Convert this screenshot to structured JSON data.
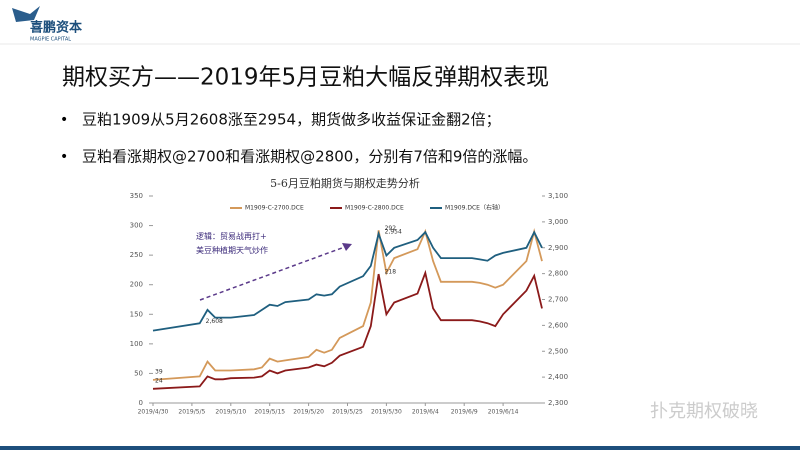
{
  "header": {
    "logo": "喜鹏资本",
    "logo_sub": "MAGPIE CAPITAL"
  },
  "title": "期权买方——2019年5月豆粕大幅反弹期权表现",
  "bullets": [
    "豆粕1909从5月2608涨至2954，期货做多收益保证金翻2倍；",
    "豆粕看涨期权@2700和看涨期权@2800，分别有7倍和9倍的涨幅。"
  ],
  "watermark": "扑克期权破晓",
  "chart_data": {
    "type": "line",
    "title": "5-6月豆粕期货与期权走势分析",
    "annotation": [
      "逻辑：贸易战再打+",
      "美豆种植期天气炒作"
    ],
    "x": [
      "2019/4/30",
      "2019/5/6",
      "2019/5/7",
      "2019/5/8",
      "2019/5/9",
      "2019/5/10",
      "2019/5/13",
      "2019/5/14",
      "2019/5/15",
      "2019/5/16",
      "2019/5/17",
      "2019/5/20",
      "2019/5/21",
      "2019/5/22",
      "2019/5/23",
      "2019/5/24",
      "2019/5/27",
      "2019/5/28",
      "2019/5/29",
      "2019/5/30",
      "2019/5/31",
      "2019/6/3",
      "2019/6/4",
      "2019/6/5",
      "2019/6/6",
      "2019/6/10",
      "2019/6/11",
      "2019/6/12",
      "2019/6/13",
      "2019/6/14",
      "2019/6/17",
      "2019/6/18",
      "2019/6/19"
    ],
    "xlim": [
      "2019/4/30",
      "2019/6/19"
    ],
    "xticks": [
      "2019/4/30",
      "2019/5/5",
      "2019/5/10",
      "2019/5/15",
      "2019/5/20",
      "2019/5/25",
      "2019/5/30",
      "2019/6/4",
      "2019/6/9",
      "2019/6/14"
    ],
    "ylim": [
      0,
      350
    ],
    "yticks": [
      0,
      50,
      100,
      150,
      200,
      250,
      300,
      350
    ],
    "y2lim": [
      2300,
      3100
    ],
    "y2ticks": [
      {
        "value": 2300,
        "label": "2,300"
      },
      {
        "value": 2400,
        "label": "2,400"
      },
      {
        "value": 2500,
        "label": "2,500"
      },
      {
        "value": 2600,
        "label": "2,600"
      },
      {
        "value": 2700,
        "label": "2,700"
      },
      {
        "value": 2800,
        "label": "2,800"
      },
      {
        "value": 2900,
        "label": "2,900"
      },
      {
        "value": 3000,
        "label": "3,000"
      },
      {
        "value": 3100,
        "label": "3,100"
      }
    ],
    "series": [
      {
        "name": "M1909-C-2700.DCE",
        "color": "#d4995a",
        "values": [
          39,
          45,
          70,
          55,
          55,
          55,
          57,
          60,
          75,
          70,
          72,
          78,
          90,
          85,
          90,
          110,
          130,
          170,
          292,
          220,
          245,
          260,
          290,
          240,
          205,
          205,
          203,
          200,
          195,
          200,
          240,
          290,
          240
        ],
        "value_labels": [
          "39",
          null,
          null,
          null,
          null,
          null,
          null,
          null,
          null,
          null,
          null,
          null,
          null,
          null,
          null,
          null,
          null,
          null,
          "292",
          null,
          null,
          null,
          null,
          null,
          null,
          null,
          null,
          null,
          null,
          null,
          null,
          null,
          null
        ]
      },
      {
        "name": "M1909-C-2800.DCE",
        "color": "#8b1a1a",
        "values": [
          24,
          28,
          45,
          40,
          40,
          42,
          43,
          45,
          55,
          50,
          55,
          60,
          65,
          62,
          68,
          80,
          95,
          130,
          218,
          150,
          170,
          185,
          220,
          160,
          140,
          140,
          138,
          135,
          130,
          150,
          190,
          215,
          160
        ],
        "value_labels": [
          "24",
          null,
          null,
          null,
          null,
          null,
          null,
          null,
          null,
          null,
          null,
          null,
          null,
          null,
          null,
          null,
          null,
          null,
          "218",
          null,
          null,
          null,
          null,
          null,
          null,
          null,
          null,
          null,
          null,
          null,
          null,
          null,
          null
        ]
      },
      {
        "name": "M1909.DCE（右轴）",
        "color": "#1f5f7f",
        "axis": "y2",
        "values": [
          2580,
          2608,
          2660,
          2630,
          2630,
          2630,
          2640,
          2660,
          2680,
          2675,
          2690,
          2700,
          2720,
          2715,
          2720,
          2750,
          2790,
          2830,
          2954,
          2870,
          2900,
          2930,
          2960,
          2900,
          2860,
          2860,
          2855,
          2850,
          2870,
          2880,
          2900,
          2960,
          2900
        ],
        "value_labels": [
          null,
          "2,608",
          null,
          null,
          null,
          null,
          null,
          null,
          null,
          null,
          null,
          null,
          null,
          null,
          null,
          null,
          null,
          null,
          "2,954",
          null,
          null,
          null,
          null,
          null,
          null,
          null,
          null,
          null,
          null,
          null,
          null,
          null,
          null
        ]
      }
    ]
  }
}
